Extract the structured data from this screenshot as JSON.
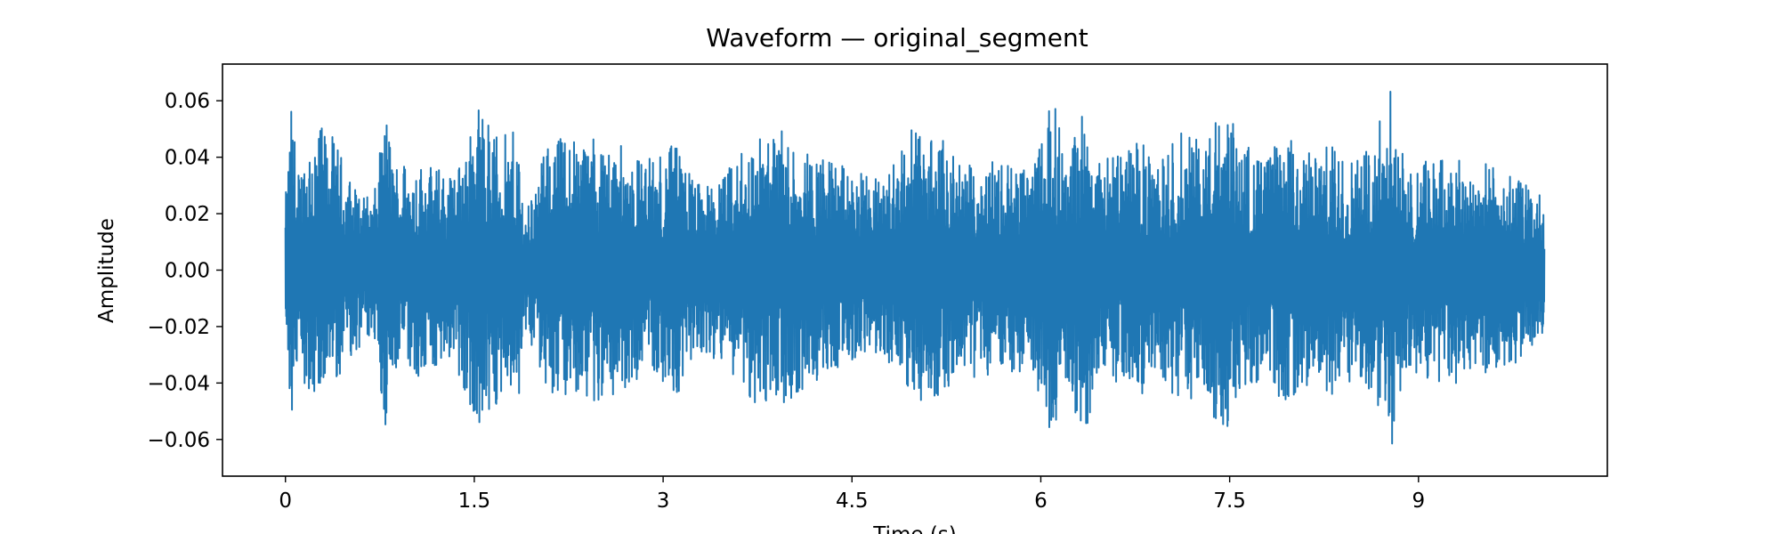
{
  "chart_data": {
    "type": "line",
    "title": "Waveform — original_segment",
    "xlabel": "Time (s)",
    "ylabel": "Amplitude",
    "xlim": [
      -0.5,
      10.5
    ],
    "ylim": [
      -0.073,
      0.073
    ],
    "xticks": [
      0,
      1.5,
      3,
      4.5,
      6,
      7.5,
      9
    ],
    "xtick_labels": [
      "0",
      "1.5",
      "3",
      "4.5",
      "6",
      "7.5",
      "9"
    ],
    "yticks": [
      0.06,
      0.04,
      0.02,
      0.0,
      -0.02,
      -0.04,
      -0.06
    ],
    "ytick_labels": [
      "0.06",
      "0.04",
      "0.02",
      "0.00",
      "−0.02",
      "−0.04",
      "−0.06"
    ],
    "grid": false,
    "series": [
      {
        "color": "#1f77b4",
        "time_range": [
          0,
          10.0
        ],
        "envelope": {
          "x": [
            0.0,
            0.05,
            0.1,
            0.2,
            0.35,
            0.55,
            0.7,
            0.8,
            0.85,
            1.0,
            1.2,
            1.35,
            1.55,
            1.7,
            1.85,
            1.9,
            2.1,
            2.3,
            2.4,
            2.55,
            2.75,
            2.9,
            3.1,
            3.3,
            3.5,
            3.7,
            3.9,
            4.05,
            4.2,
            4.35,
            4.5,
            4.75,
            4.95,
            5.2,
            5.35,
            5.55,
            5.7,
            5.9,
            6.1,
            6.2,
            6.35,
            6.45,
            6.6,
            6.8,
            6.9,
            7.1,
            7.3,
            7.45,
            7.55,
            7.75,
            7.95,
            8.15,
            8.3,
            8.45,
            8.6,
            8.8,
            8.9,
            9.1,
            9.3,
            9.45,
            9.6,
            9.8,
            10.0
          ],
          "upper": [
            0.025,
            0.061,
            0.035,
            0.052,
            0.05,
            0.03,
            0.025,
            0.059,
            0.04,
            0.04,
            0.037,
            0.035,
            0.061,
            0.047,
            0.05,
            0.02,
            0.047,
            0.05,
            0.048,
            0.047,
            0.042,
            0.04,
            0.045,
            0.03,
            0.035,
            0.047,
            0.05,
            0.048,
            0.042,
            0.04,
            0.035,
            0.033,
            0.05,
            0.048,
            0.037,
            0.04,
            0.04,
            0.035,
            0.061,
            0.042,
            0.061,
            0.038,
            0.042,
            0.047,
            0.035,
            0.05,
            0.045,
            0.061,
            0.05,
            0.04,
            0.048,
            0.042,
            0.045,
            0.04,
            0.045,
            0.066,
            0.035,
            0.04,
            0.04,
            0.04,
            0.037,
            0.033,
            0.025
          ],
          "lower": [
            -0.022,
            -0.06,
            -0.035,
            -0.045,
            -0.042,
            -0.03,
            -0.025,
            -0.058,
            -0.035,
            -0.04,
            -0.035,
            -0.035,
            -0.061,
            -0.045,
            -0.047,
            -0.02,
            -0.046,
            -0.048,
            -0.046,
            -0.047,
            -0.04,
            -0.035,
            -0.045,
            -0.03,
            -0.033,
            -0.047,
            -0.048,
            -0.047,
            -0.04,
            -0.035,
            -0.033,
            -0.03,
            -0.047,
            -0.046,
            -0.035,
            -0.04,
            -0.038,
            -0.035,
            -0.06,
            -0.04,
            -0.061,
            -0.035,
            -0.04,
            -0.045,
            -0.035,
            -0.047,
            -0.045,
            -0.061,
            -0.047,
            -0.04,
            -0.047,
            -0.04,
            -0.045,
            -0.04,
            -0.045,
            -0.066,
            -0.035,
            -0.04,
            -0.04,
            -0.038,
            -0.035,
            -0.033,
            -0.022
          ]
        }
      }
    ]
  }
}
